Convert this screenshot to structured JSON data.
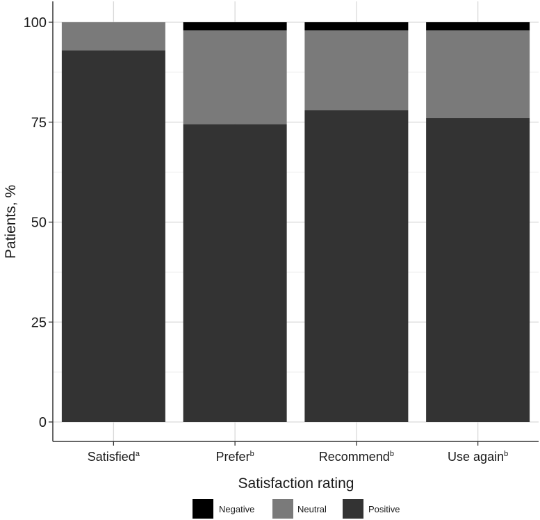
{
  "chart_data": {
    "type": "bar",
    "stacked": true,
    "categories": [
      {
        "label": "Satisfied",
        "sup": "a"
      },
      {
        "label": "Prefer",
        "sup": "b"
      },
      {
        "label": "Recommend",
        "sup": "b"
      },
      {
        "label": "Use again",
        "sup": "b"
      }
    ],
    "series": [
      {
        "name": "Positive",
        "color": "#333333",
        "values": [
          93,
          74.5,
          78,
          76
        ]
      },
      {
        "name": "Neutral",
        "color": "#7a7a7a",
        "values": [
          7,
          23.5,
          20,
          22
        ]
      },
      {
        "name": "Negative",
        "color": "#000000",
        "values": [
          0,
          2,
          2,
          2
        ]
      }
    ],
    "legend_order": [
      "Negative",
      "Neutral",
      "Positive"
    ],
    "xlabel": "Satisfaction rating",
    "ylabel": "Patients, %",
    "ylim": [
      0,
      100
    ],
    "yticks": [
      0,
      25,
      50,
      75,
      100
    ],
    "grid": true,
    "legend_position": "bottom"
  }
}
